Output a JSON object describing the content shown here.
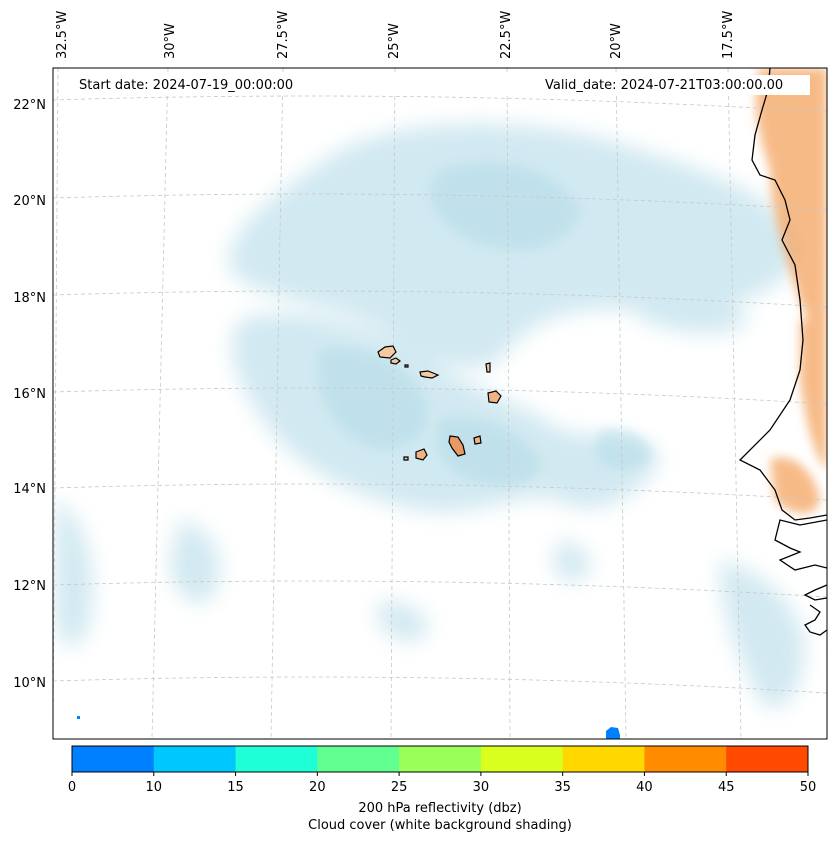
{
  "map": {
    "start_date": "Start date: 2024-07-19_00:00:00",
    "valid_date": "Valid_date: 2024-07-21T03:00:00.00",
    "lon_labels": [
      "32.5°W",
      "30°W",
      "27.5°W",
      "25°W",
      "22.5°W",
      "20°W",
      "17.5°W"
    ],
    "lat_labels": [
      "22°N",
      "20°N",
      "18°N",
      "16°N",
      "14°N",
      "12°N",
      "10°N"
    ],
    "colors": {
      "cloud": "#add8e6",
      "land_dust": "#f4a460",
      "coast": "#000000",
      "grid": "#b0b0b0"
    }
  },
  "colorbar": {
    "ticks": [
      "0",
      "10",
      "15",
      "20",
      "25",
      "30",
      "35",
      "40",
      "45",
      "50"
    ],
    "colors": [
      "#0080ff",
      "#00c8ff",
      "#1effd8",
      "#60ff90",
      "#9aff58",
      "#d8ff1e",
      "#ffd800",
      "#ff8c00",
      "#ff4a00"
    ],
    "label_line1": "200 hPa reflectivity (dbz)",
    "label_line2": "Cloud cover (white background shading)"
  }
}
